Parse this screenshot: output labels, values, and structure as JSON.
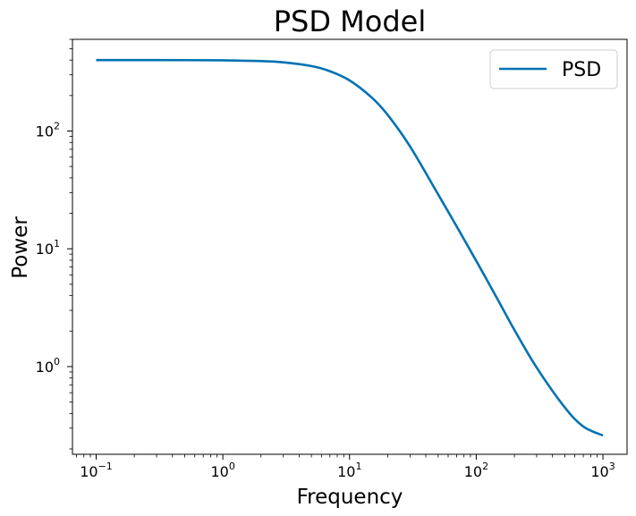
{
  "chart_data": {
    "type": "line",
    "title": "PSD Model",
    "xlabel": "Frequency",
    "ylabel": "Power",
    "xscale": "log",
    "yscale": "log",
    "xlim": [
      0.065,
      1550
    ],
    "ylim": [
      0.18,
      600
    ],
    "grid": false,
    "legend": {
      "placement": "upper-right"
    },
    "x_ticks": [
      {
        "value": 0.1,
        "base": "10",
        "exp": "−1"
      },
      {
        "value": 1,
        "base": "10",
        "exp": "0"
      },
      {
        "value": 10,
        "base": "10",
        "exp": "1"
      },
      {
        "value": 100,
        "base": "10",
        "exp": "2"
      },
      {
        "value": 1000,
        "base": "10",
        "exp": "3"
      }
    ],
    "y_ticks": [
      {
        "value": 1,
        "base": "10",
        "exp": "0"
      },
      {
        "value": 10,
        "base": "10",
        "exp": "1"
      },
      {
        "value": 100,
        "base": "10",
        "exp": "2"
      }
    ],
    "series": [
      {
        "name": "PSD",
        "color": "#0072b2",
        "x": [
          0.1,
          0.3,
          1,
          2,
          3,
          5,
          7,
          10,
          15,
          20,
          30,
          50,
          70,
          100,
          150,
          200,
          300,
          500,
          700,
          1000
        ],
        "y": [
          400,
          400,
          398,
          392,
          383,
          356,
          322,
          269,
          192,
          137,
          74,
          29,
          15.5,
          7.9,
          3.6,
          2.05,
          0.98,
          0.45,
          0.31,
          0.26
        ]
      }
    ]
  }
}
